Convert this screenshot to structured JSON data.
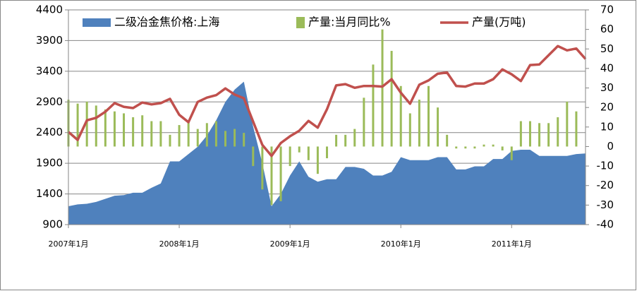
{
  "chart_data": {
    "type": "combo",
    "categories": [
      "2007年1月",
      null,
      null,
      null,
      null,
      null,
      null,
      null,
      null,
      null,
      null,
      null,
      "2008年1月",
      null,
      null,
      null,
      null,
      null,
      null,
      null,
      null,
      null,
      null,
      null,
      "2009年1月",
      null,
      null,
      null,
      null,
      null,
      null,
      null,
      null,
      null,
      null,
      null,
      "2010年1月",
      null,
      null,
      null,
      null,
      null,
      null,
      null,
      null,
      null,
      null,
      null,
      "2011年1月",
      null,
      null,
      null,
      null,
      null,
      null,
      null,
      null
    ],
    "ylim": [
      900,
      4400
    ],
    "yticks": [
      900,
      1400,
      1900,
      2400,
      2900,
      3400,
      3900,
      4400
    ],
    "y2lim": [
      -40,
      70
    ],
    "y2ticks": [
      -40,
      -30,
      -20,
      -10,
      0,
      10,
      20,
      30,
      40,
      50,
      60,
      70
    ],
    "grid": true,
    "legend": "top",
    "series": [
      {
        "name": "二级冶金焦价格:上海",
        "type": "area",
        "axis": "y",
        "color": "#4f81bd",
        "values": [
          1200,
          1230,
          1240,
          1270,
          1320,
          1370,
          1380,
          1420,
          1420,
          1500,
          1570,
          1930,
          1930,
          2050,
          2170,
          2350,
          2600,
          2900,
          3100,
          3230,
          2500,
          1900,
          1200,
          1400,
          1700,
          1930,
          1680,
          1600,
          1640,
          1640,
          1840,
          1840,
          1810,
          1700,
          1700,
          1760,
          2000,
          1950,
          1950,
          1950,
          2000,
          2000,
          1800,
          1800,
          1850,
          1850,
          1970,
          1970,
          2100,
          2120,
          2120,
          2020,
          2020,
          2020,
          2020,
          2050,
          2060
        ]
      },
      {
        "name": "产量:当月同比%",
        "type": "bar",
        "axis": "y2",
        "color": "#9bbb59",
        "values": [
          24,
          22,
          23,
          21,
          19,
          18,
          17,
          15,
          16,
          13,
          13,
          6,
          11,
          13,
          9,
          12,
          13,
          8,
          9,
          7,
          -10,
          -22,
          -30,
          -28,
          -10,
          -3,
          -7,
          -14,
          -6,
          6,
          6,
          9,
          25,
          42,
          60,
          49,
          31,
          17,
          24,
          31,
          20,
          6,
          -1,
          -1,
          -1,
          1,
          1,
          -2,
          -7,
          13,
          13,
          12,
          12,
          15,
          23,
          18,
          null
        ]
      },
      {
        "name": "产量(万吨)",
        "type": "line",
        "axis": "y",
        "color": "#c0504d",
        "values": [
          2410,
          2280,
          2600,
          2640,
          2740,
          2880,
          2820,
          2800,
          2890,
          2860,
          2880,
          2950,
          2690,
          2570,
          2900,
          2970,
          3010,
          3120,
          3020,
          2960,
          2580,
          2200,
          2020,
          2230,
          2340,
          2430,
          2590,
          2480,
          2780,
          3170,
          3190,
          3130,
          3160,
          3160,
          3150,
          3270,
          3050,
          2870,
          3180,
          3250,
          3360,
          3380,
          3160,
          3150,
          3200,
          3200,
          3270,
          3430,
          3350,
          3240,
          3500,
          3510,
          3660,
          3810,
          3740,
          3770,
          3600
        ]
      }
    ]
  }
}
